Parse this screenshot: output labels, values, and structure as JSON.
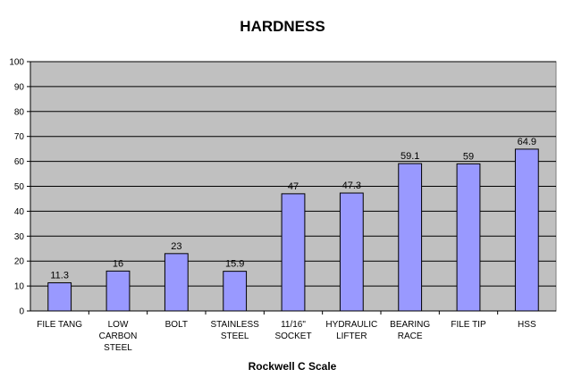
{
  "chart_data": {
    "type": "bar",
    "title": "HARDNESS",
    "xlabel": "Rockwell C Scale",
    "ylabel": "",
    "ylim": [
      0,
      100
    ],
    "yticks": [
      0,
      10,
      20,
      30,
      40,
      50,
      60,
      70,
      80,
      90,
      100
    ],
    "categories": [
      "FILE TANG",
      "LOW CARBON STEEL",
      "BOLT",
      "STAINLESS STEEL",
      "11/16\" SOCKET",
      "HYDRAULIC LIFTER",
      "BEARING RACE",
      "FILE TIP",
      "HSS"
    ],
    "category_lines": [
      [
        "FILE TANG"
      ],
      [
        "LOW",
        "CARBON",
        "STEEL"
      ],
      [
        "BOLT"
      ],
      [
        "STAINLESS",
        "STEEL"
      ],
      [
        "11/16\"",
        "SOCKET"
      ],
      [
        "HYDRAULIC",
        "LIFTER"
      ],
      [
        "BEARING",
        "RACE"
      ],
      [
        "FILE TIP"
      ],
      [
        "HSS"
      ]
    ],
    "values": [
      11.3,
      16,
      23,
      15.9,
      47,
      47.3,
      59.1,
      59,
      64.9
    ],
    "grid": true,
    "legend": "none",
    "colors": {
      "bar_fill": "#9999ff",
      "bar_stroke": "#000000",
      "plot_background": "#c0c0c0",
      "grid": "#000000"
    }
  }
}
